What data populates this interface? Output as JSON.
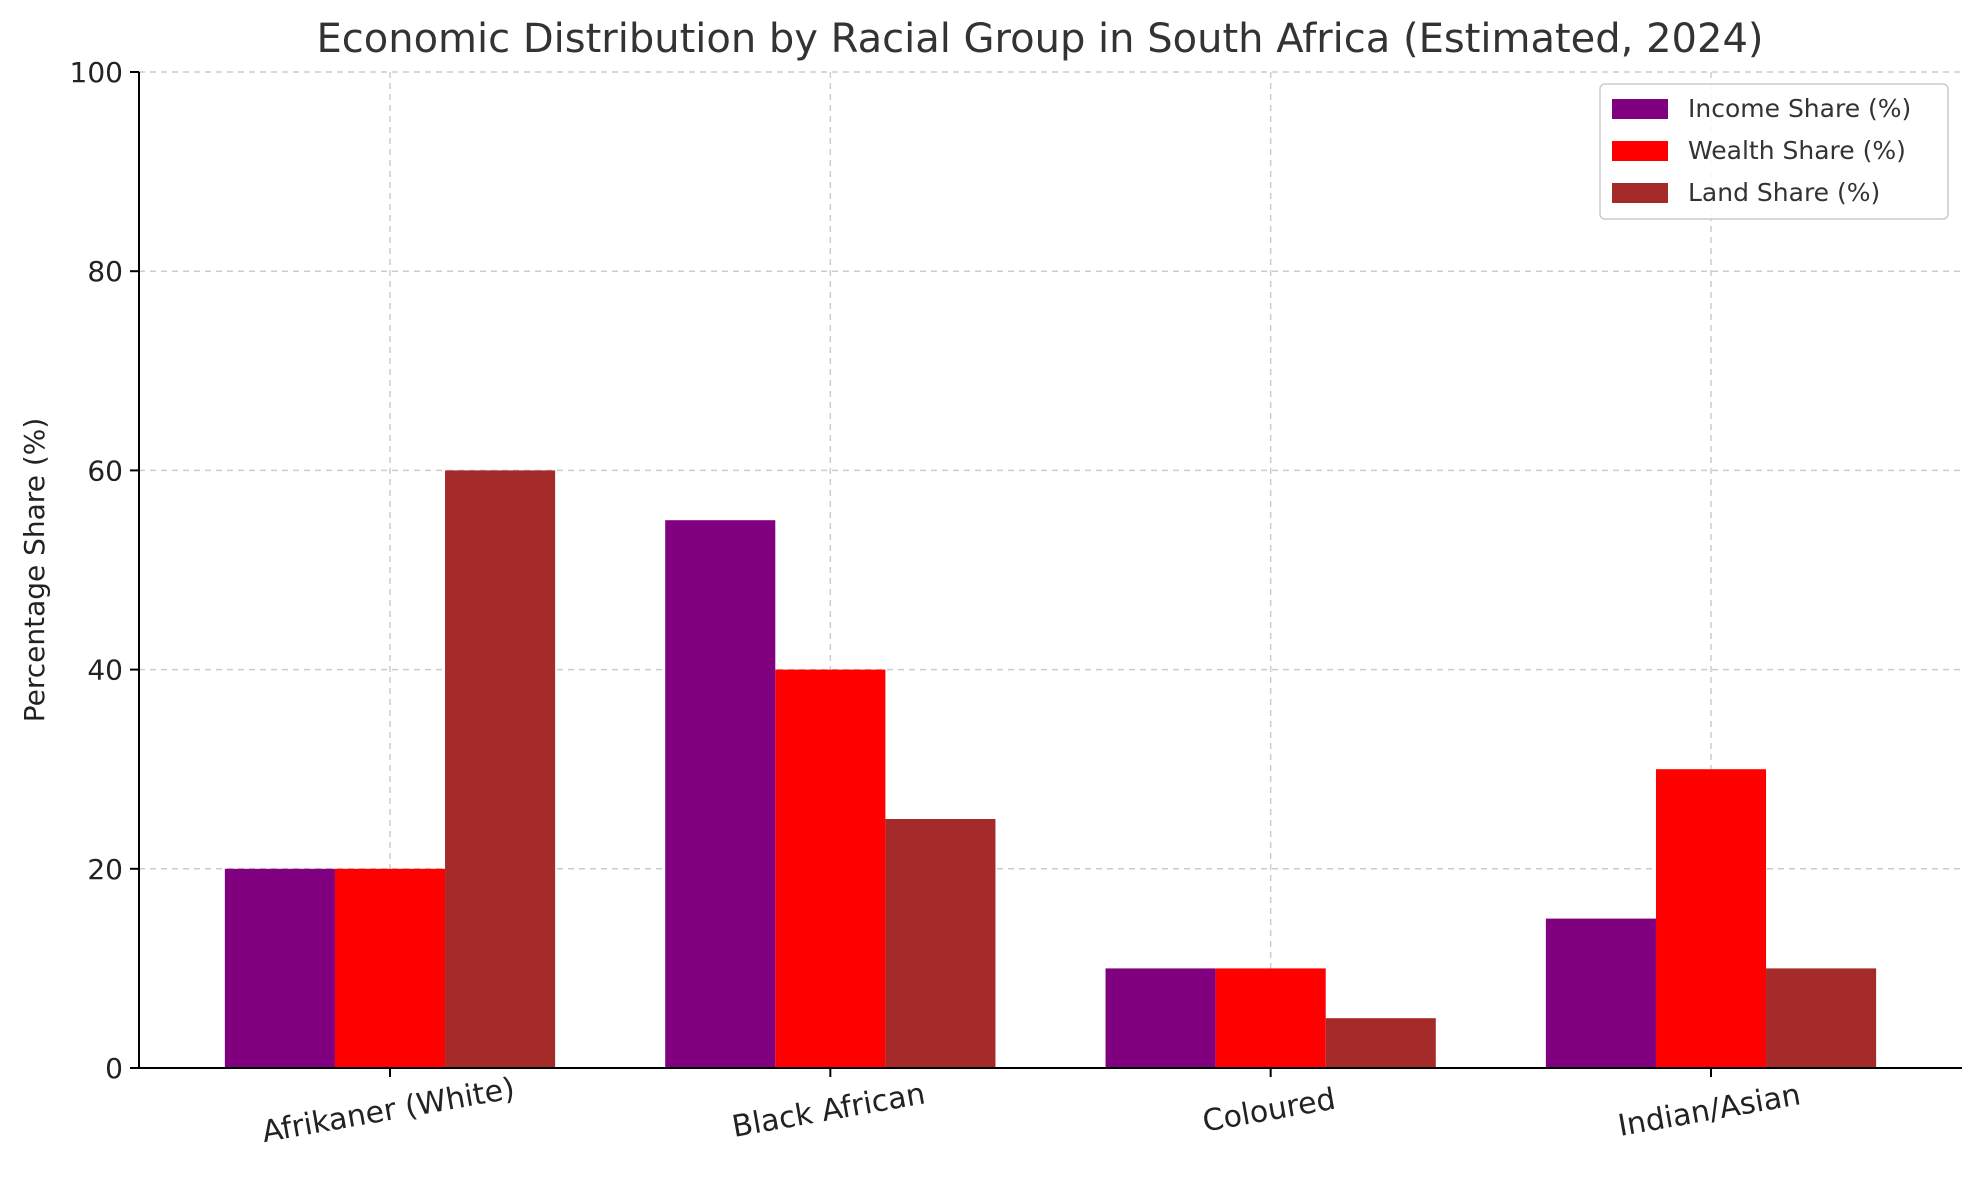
{
  "chart_data": {
    "type": "bar",
    "title": "Economic Distribution by Racial Group in South Africa (Estimated, 2024)",
    "xlabel": "",
    "ylabel": "Percentage Share (%)",
    "ylim": [
      0,
      100
    ],
    "yticks": [
      0,
      20,
      40,
      60,
      80,
      100
    ],
    "grid": true,
    "legend_position": "top-right",
    "categories": [
      "Afrikaner (White)",
      "Black African",
      "Coloured",
      "Indian/Asian"
    ],
    "series": [
      {
        "name": "Income Share (%)",
        "color": "#800080",
        "values": [
          20,
          55,
          10,
          15
        ]
      },
      {
        "name": "Wealth Share (%)",
        "color": "#ff0000",
        "values": [
          20,
          40,
          10,
          30
        ]
      },
      {
        "name": "Land Share (%)",
        "color": "#a52a2a",
        "values": [
          60,
          25,
          5,
          10
        ]
      }
    ]
  }
}
